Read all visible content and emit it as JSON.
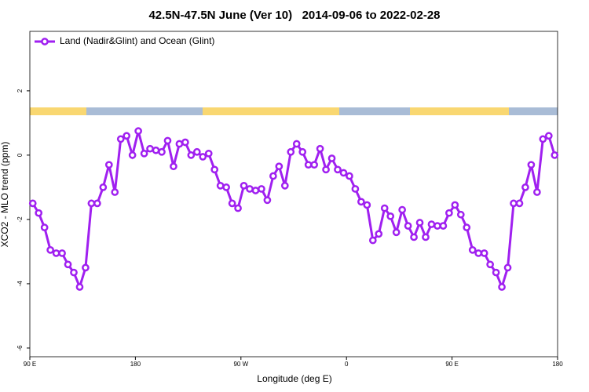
{
  "chart_data": {
    "type": "line",
    "title": "42.5N-47.5N June (Ver 10)   2014-09-06 to 2022-02-28",
    "x_label": "Longitude (deg E)",
    "y_label": "XCO2 - MLO trend (ppm)",
    "x": [
      92.5,
      97.5,
      102.5,
      107.5,
      112.5,
      117.5,
      122.5,
      127.5,
      132.5,
      137.5,
      142.5,
      147.5,
      152.5,
      157.5,
      162.5,
      167.5,
      172.5,
      177.5,
      182.5,
      187.5,
      192.5,
      197.5,
      202.5,
      207.5,
      212.5,
      217.5,
      222.5,
      227.5,
      232.5,
      237.5,
      242.5,
      247.5,
      252.5,
      257.5,
      262.5,
      267.5,
      272.5,
      277.5,
      282.5,
      287.5,
      292.5,
      297.5,
      302.5,
      307.5,
      312.5,
      317.5,
      322.5,
      327.5,
      332.5,
      337.5,
      342.5,
      347.5,
      352.5,
      357.5,
      362.5,
      367.5,
      372.5,
      377.5,
      382.5,
      387.5,
      392.5,
      397.5,
      402.5,
      407.5,
      412.5,
      417.5,
      422.5,
      427.5,
      432.5,
      437.5,
      442.5,
      447.5,
      452.5,
      457.5,
      462.5,
      467.5,
      472.5,
      477.5,
      482.5,
      487.5,
      492.5,
      497.5,
      502.5,
      507.5,
      512.5,
      517.5,
      522.5,
      527.5,
      532.5,
      537.5
    ],
    "series": [
      {
        "name": "Land (Nadir&Glint) and Ocean (Glint)",
        "color": "#a020f0",
        "values": [
          -1.5,
          -1.8,
          -2.25,
          -2.95,
          -3.05,
          -3.05,
          -3.4,
          -3.65,
          -4.1,
          -3.5,
          -1.5,
          -1.5,
          -1.0,
          -0.3,
          -1.15,
          0.5,
          0.6,
          0,
          0.75,
          0.05,
          0.2,
          0.15,
          0.1,
          0.45,
          -0.35,
          0.35,
          0.4,
          0,
          0.1,
          -0.05,
          0.05,
          -0.45,
          -0.95,
          -1.0,
          -1.5,
          -1.65,
          -0.95,
          -1.05,
          -1.1,
          -1.05,
          -1.4,
          -0.65,
          -0.35,
          -0.95,
          0.1,
          0.35,
          0.1,
          -0.3,
          -0.3,
          0.2,
          -0.45,
          -0.1,
          -0.45,
          -0.55,
          -0.65,
          -1.05,
          -1.45,
          -1.55,
          -2.65,
          -2.45,
          -1.65,
          -1.9,
          -2.4,
          -1.7,
          -2.2,
          -2.55,
          -2.1,
          -2.55,
          -2.15,
          -2.2,
          -2.2,
          -1.8,
          -1.55,
          -1.85,
          -2.25,
          -2.95,
          -3.05,
          -3.05,
          -3.4,
          -3.65,
          -4.1,
          -3.5,
          -1.5,
          -1.5,
          -1.0,
          -0.3,
          -1.15,
          0.5,
          0.6,
          0
        ]
      }
    ],
    "xlim": [
      90,
      540
    ],
    "xticks": [
      {
        "value": 90,
        "label": "90 E"
      },
      180,
      {
        "value": 270,
        "label": "90 W"
      },
      {
        "value": 360,
        "label": "0"
      },
      {
        "value": 450,
        "label": "90 E"
      },
      {
        "value": 540,
        "label": "180"
      }
    ],
    "ylim": [
      -6.27,
      3.85
    ],
    "yticks": [
      -6,
      -4,
      -2,
      0,
      2
    ],
    "legend": "top-left"
  }
}
